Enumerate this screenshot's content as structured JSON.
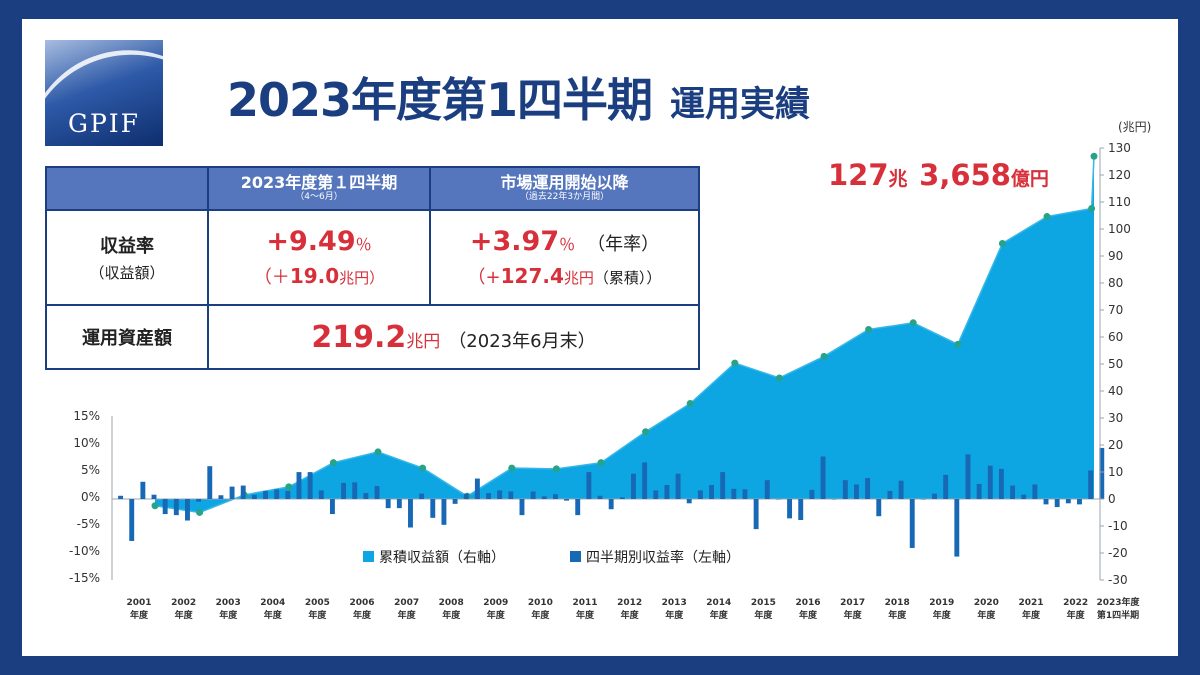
{
  "title": {
    "main": "2023年度第1四半期",
    "sub": "運用実績"
  },
  "logo": {
    "text": "GPIF"
  },
  "summary_table": {
    "col1_header": "2023年度第１四半期",
    "col1_note": "（4〜6月）",
    "col2_header": "市場運用開始以降",
    "col2_note": "（過去22年3か月間）",
    "row1_label": "収益率",
    "row1_sublabel": "（収益額）",
    "q_rate": "+9.49",
    "q_rate_unit": "％",
    "q_amount_open": "（＋",
    "q_amount": "19.0",
    "q_amount_unit": "兆円）",
    "cum_rate": "+3.97",
    "cum_rate_unit": "％",
    "cum_rate_note": "（年率）",
    "cum_amount_open": "（+",
    "cum_amount": "127.4",
    "cum_amount_unit": "兆円",
    "cum_amount_note": "（累積））",
    "row2_label": "運用資産額",
    "assets": "219.2",
    "assets_unit": "兆円",
    "assets_note": "（2023年6月末）"
  },
  "highlight": {
    "n1": "127",
    "u1": "兆",
    "n2": "3,658",
    "u2": "億円"
  },
  "chart_data": {
    "type": "bar+area",
    "left_axis": {
      "ticks": [
        "15%",
        "10%",
        "5%",
        "0%",
        "-5%",
        "-10%",
        "-15%"
      ],
      "range": [
        -15,
        15
      ]
    },
    "right_axis": {
      "unit_label": "(兆円)",
      "range": [
        -30,
        130
      ],
      "ticks": [
        "130",
        "120",
        "110",
        "100",
        "90",
        "80",
        "70",
        "60",
        "50",
        "40",
        "30",
        "20",
        "10",
        "0",
        "-10",
        "-20",
        "-30"
      ]
    },
    "x_labels": [
      {
        "year": "2001",
        "suffix": "年度"
      },
      {
        "year": "2002",
        "suffix": "年度"
      },
      {
        "year": "2003",
        "suffix": "年度"
      },
      {
        "year": "2004",
        "suffix": "年度"
      },
      {
        "year": "2005",
        "suffix": "年度"
      },
      {
        "year": "2006",
        "suffix": "年度"
      },
      {
        "year": "2007",
        "suffix": "年度"
      },
      {
        "year": "2008",
        "suffix": "年度"
      },
      {
        "year": "2009",
        "suffix": "年度"
      },
      {
        "year": "2010",
        "suffix": "年度"
      },
      {
        "year": "2011",
        "suffix": "年度"
      },
      {
        "year": "2012",
        "suffix": "年度"
      },
      {
        "year": "2013",
        "suffix": "年度"
      },
      {
        "year": "2014",
        "suffix": "年度"
      },
      {
        "year": "2015",
        "suffix": "年度"
      },
      {
        "year": "2016",
        "suffix": "年度"
      },
      {
        "year": "2017",
        "suffix": "年度"
      },
      {
        "year": "2018",
        "suffix": "年度"
      },
      {
        "year": "2019",
        "suffix": "年度"
      },
      {
        "year": "2020",
        "suffix": "年度"
      },
      {
        "year": "2021",
        "suffix": "年度"
      },
      {
        "year": "2022",
        "suffix": "年度"
      },
      {
        "year": "2023年度",
        "suffix": "第1四半期"
      }
    ],
    "cumulative_series": {
      "name": "累積収益額（右軸）",
      "color": "#0ea5e3",
      "values": [
        -2.5,
        -5.0,
        1.5,
        4.5,
        13.5,
        17.5,
        11.5,
        1.0,
        11.5,
        11.2,
        13.5,
        25.0,
        35.5,
        50.5,
        45.0,
        53.0,
        63.0,
        65.5,
        57.5,
        95.0,
        105.0,
        108.0,
        127.4
      ]
    },
    "quarterly_series": {
      "name": "四半期別収益率（左軸）",
      "color": "#1769b5",
      "values": [
        0.6,
        -7.8,
        3.2,
        0.8,
        -2.8,
        -3.0,
        -4.0,
        -0.5,
        6.1,
        0.7,
        2.3,
        2.5,
        0.8,
        1.5,
        1.8,
        1.5,
        5.0,
        5.0,
        1.6,
        -2.8,
        3.0,
        3.1,
        1.1,
        2.4,
        -1.7,
        -1.7,
        -5.3,
        1.0,
        -3.5,
        -4.8,
        -0.9,
        1.0,
        3.8,
        1.1,
        1.6,
        1.4,
        -3.0,
        1.4,
        0.5,
        0.9,
        -0.3,
        -3.0,
        5.0,
        0.6,
        -1.9,
        0.3,
        4.7,
        6.8,
        1.6,
        2.6,
        4.7,
        -0.8,
        1.6,
        2.6,
        5.0,
        1.9,
        1.8,
        -5.6,
        3.5,
        0.0,
        -3.6,
        -3.9,
        1.7,
        7.9,
        0.0,
        3.5,
        2.7,
        3.9,
        -3.2,
        1.5,
        3.4,
        -9.1,
        0.0,
        1.0,
        4.5,
        -10.7,
        8.3,
        2.8,
        6.2,
        5.6,
        2.5,
        0.8,
        2.7,
        -1.0,
        -1.5,
        -0.8,
        -1.0,
        5.3,
        9.49
      ]
    }
  }
}
